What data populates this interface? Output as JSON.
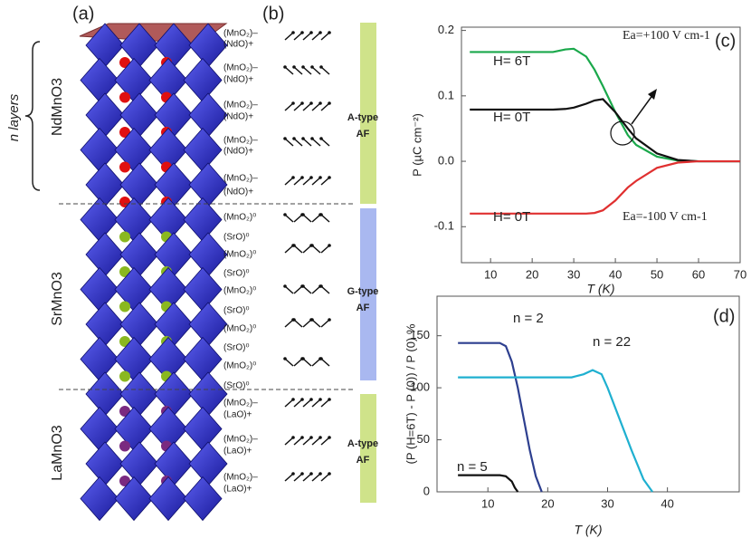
{
  "panel_labels": [
    "(a)",
    "(b)",
    "(c)",
    "(d)"
  ],
  "structure": {
    "n_layers": "n layers",
    "blocks": [
      "NdMnO3",
      "SrMnO3",
      "LaMnO3"
    ],
    "layer_labels": [
      "(MnO₂)–",
      "(NdO)+",
      "(MnO₂)–",
      "(NdO)+",
      "(MnO₂)–",
      "(NdO)+",
      "(MnO₂)–",
      "(NdO)+",
      "(MnO₂)–",
      "(NdO)+",
      "(MnO₂)⁰",
      "(SrO)⁰",
      "(MnO₂)⁰",
      "(SrO)⁰",
      "(MnO₂)⁰",
      "(SrO)⁰",
      "(MnO₂)⁰",
      "(SrO)⁰",
      "(MnO₂)⁰",
      "(SrO)⁰",
      "(MnO₂)–",
      "(LaO)+",
      "(MnO₂)–",
      "(LaO)+",
      "(MnO₂)–",
      "(LaO)+"
    ],
    "magnetic": [
      [
        "A-type",
        "AF"
      ],
      [
        "G-type",
        "AF"
      ],
      [
        "A-type",
        "AF"
      ]
    ]
  },
  "chart_data": [
    {
      "type": "line",
      "xlabel": "T (K)",
      "ylabel": "P (µC cm⁻²)",
      "x": [
        5,
        10,
        15,
        20,
        25,
        28,
        30,
        33,
        35,
        37,
        40,
        43,
        45,
        50,
        55,
        60,
        65,
        70
      ],
      "series": [
        {
          "name": "H= 6T",
          "color": "#1aa84b",
          "values": [
            0.167,
            0.167,
            0.167,
            0.167,
            0.167,
            0.171,
            0.172,
            0.16,
            0.14,
            0.115,
            0.075,
            0.04,
            0.025,
            0.007,
            0.001,
            0,
            0,
            0
          ]
        },
        {
          "name": "H= 0T",
          "color": "#111111",
          "values": [
            0.079,
            0.079,
            0.079,
            0.079,
            0.079,
            0.08,
            0.082,
            0.088,
            0.093,
            0.095,
            0.075,
            0.05,
            0.035,
            0.012,
            0.002,
            0,
            0,
            0
          ]
        },
        {
          "name": "H= 0T",
          "color": "#e03030",
          "values": [
            -0.08,
            -0.08,
            -0.08,
            -0.08,
            -0.08,
            -0.08,
            -0.08,
            -0.08,
            -0.079,
            -0.075,
            -0.06,
            -0.04,
            -0.03,
            -0.01,
            -0.002,
            0,
            0,
            0
          ]
        }
      ],
      "annotations": [
        "Ea=+100 V cm-1",
        "Ea=-100 V cm-1"
      ],
      "xlim": [
        3,
        70
      ],
      "ylim": [
        -0.155,
        0.205
      ],
      "xticks": [
        10,
        20,
        30,
        40,
        50,
        60,
        70
      ],
      "yticks": [
        -0.1,
        {
          "value": 0,
          "label": "0.0"
        },
        0.1,
        0.2
      ]
    },
    {
      "type": "line",
      "xlabel": "T (K)",
      "ylabel": "(P (H=6T) - P (0)) / P (0) %",
      "series": [
        {
          "name": "n = 2",
          "color": "#2d3f8f",
          "x": [
            5,
            12,
            13,
            14,
            15,
            16,
            17,
            18,
            19
          ],
          "values": [
            143,
            143,
            140,
            125,
            100,
            70,
            40,
            15,
            0
          ]
        },
        {
          "name": "n = 22",
          "color": "#1fb0d0",
          "x": [
            5,
            15,
            20,
            24,
            26,
            27.5,
            29,
            30,
            32,
            34,
            36,
            37.5
          ],
          "values": [
            110,
            110,
            110,
            110,
            113,
            117,
            113,
            100,
            70,
            40,
            12,
            0
          ]
        },
        {
          "name": "n = 5",
          "color": "#111111",
          "x": [
            5,
            12,
            13,
            14,
            14.5,
            15
          ],
          "values": [
            16,
            16,
            15,
            10,
            4,
            0
          ]
        }
      ],
      "xlim": [
        1.5,
        52
      ],
      "ylim": [
        0,
        188
      ],
      "xticks": [
        10,
        20,
        30,
        40
      ],
      "yticks": [
        0,
        50,
        100,
        150
      ]
    }
  ]
}
